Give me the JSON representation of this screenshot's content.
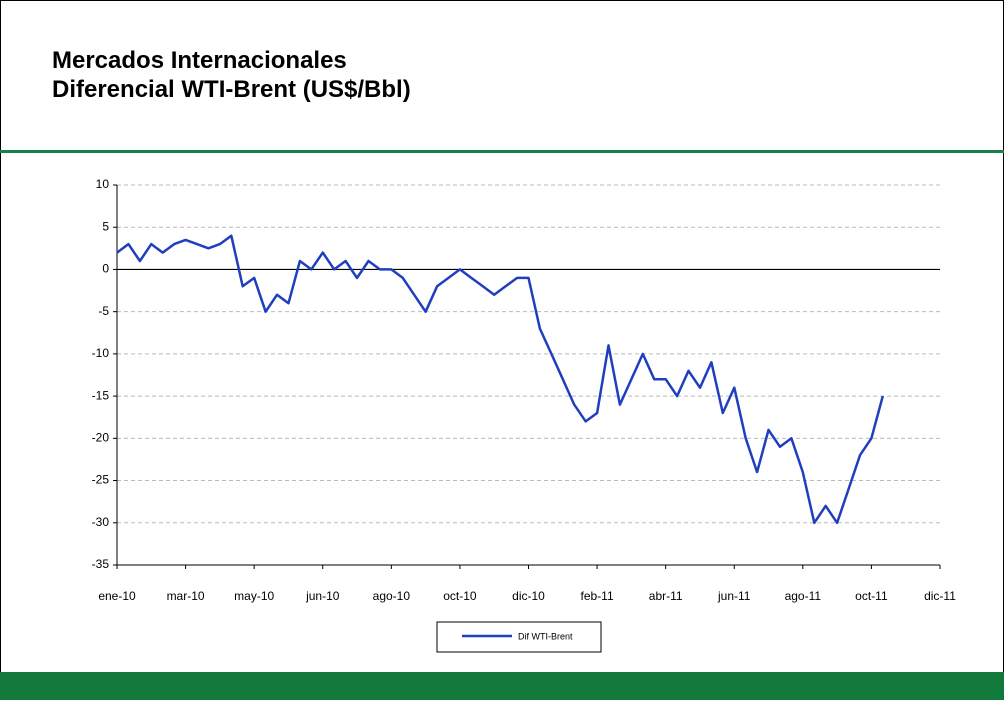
{
  "header": {
    "title_lines": [
      "Mercados Internacionales",
      "Diferencial WTI-Brent (US$/Bbl)"
    ]
  },
  "chart_data": {
    "type": "line",
    "categories": [
      "ene-10",
      null,
      null,
      null,
      null,
      null,
      "mar-10",
      null,
      null,
      null,
      null,
      null,
      "may-10",
      null,
      null,
      null,
      null,
      null,
      "jun-10",
      null,
      null,
      null,
      null,
      null,
      "ago-10",
      null,
      null,
      null,
      null,
      null,
      "oct-10",
      null,
      null,
      null,
      null,
      null,
      "dic-10",
      null,
      null,
      null,
      null,
      null,
      "feb-11",
      null,
      null,
      null,
      null,
      null,
      "abr-11",
      null,
      null,
      null,
      null,
      null,
      "jun-11",
      null,
      null,
      null,
      null,
      null,
      "ago-11",
      null,
      null,
      null,
      null,
      null,
      "oct-11",
      null,
      null,
      null,
      null,
      null,
      "dic-11"
    ],
    "series": [
      {
        "name": "Dif WTI-Brent",
        "color": "#1f3fbf",
        "values": [
          2,
          3,
          1,
          3,
          2,
          3,
          3.5,
          3,
          2.5,
          3,
          4,
          -2,
          -1,
          -5,
          -3,
          -4,
          1,
          0,
          2,
          0,
          1,
          -1,
          1,
          0,
          0,
          -1,
          -3,
          -5,
          -2,
          -1,
          0,
          -1,
          -2,
          -3,
          -2,
          -1,
          -1,
          -7,
          -10,
          -13,
          -16,
          -18,
          -17,
          -9,
          -16,
          -13,
          -10,
          -13,
          -13,
          -15,
          -12,
          -14,
          -11,
          -17,
          -14,
          -20,
          -24,
          -19,
          -21,
          -20,
          -24,
          -30,
          -28,
          -30,
          -26,
          -22,
          -20,
          -15,
          null,
          null,
          null,
          null,
          null
        ]
      }
    ],
    "ylim": [
      -35,
      10
    ],
    "yticks": [
      -35,
      -30,
      -25,
      -20,
      -15,
      -10,
      -5,
      0,
      5,
      10
    ],
    "grid": true
  }
}
